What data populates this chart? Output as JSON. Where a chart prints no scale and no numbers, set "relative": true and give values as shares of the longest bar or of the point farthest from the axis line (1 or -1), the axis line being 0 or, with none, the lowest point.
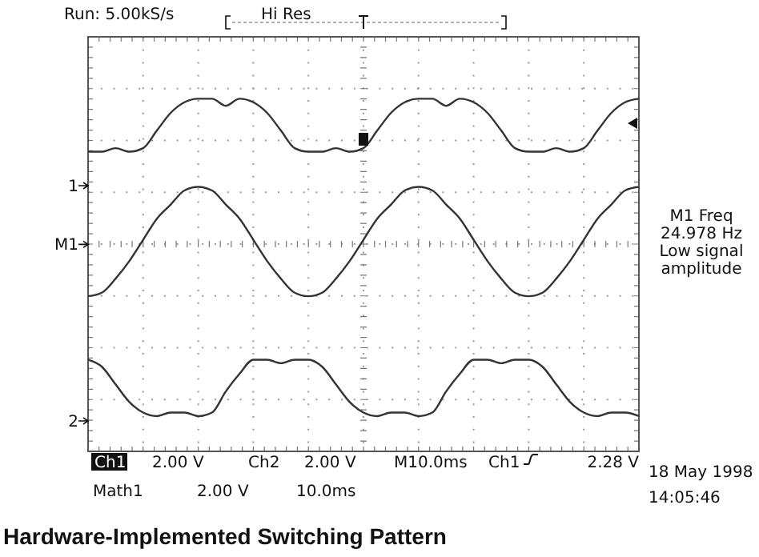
{
  "chart_data": {
    "type": "line",
    "title": "Hardware-Implemented Switching Pattern",
    "relative": true,
    "grid": true,
    "categories": [
      null,
      null,
      null,
      null,
      null,
      null,
      null,
      null,
      null,
      null,
      null,
      null,
      null,
      null,
      null,
      null,
      null,
      null,
      null,
      null,
      null,
      null,
      null,
      null,
      null,
      null,
      null,
      null,
      null,
      null,
      null,
      null,
      null,
      null,
      null,
      null,
      null,
      null,
      null,
      null,
      null
    ],
    "series": [
      {
        "name": "1",
        "color": "#333333",
        "values": [
          0.85,
          0.85,
          0.86,
          0.85,
          0.86,
          0.91,
          0.96,
          0.99,
          1.0,
          1.0,
          0.98,
          1.0,
          0.99,
          0.96,
          0.91,
          0.86,
          0.85,
          0.85,
          0.86,
          0.85,
          0.86,
          0.91,
          0.96,
          0.99,
          1.0,
          1.0,
          0.98,
          1.0,
          0.99,
          0.96,
          0.91,
          0.86,
          0.85,
          0.85,
          0.86,
          0.85,
          0.86,
          0.91,
          0.96,
          0.99,
          1.0
        ]
      },
      {
        "name": "M1",
        "color": "#333333",
        "values": [
          0.44,
          0.45,
          0.49,
          0.54,
          0.6,
          0.66,
          0.7,
          0.74,
          0.75,
          0.74,
          0.7,
          0.66,
          0.6,
          0.54,
          0.49,
          0.45,
          0.44,
          0.45,
          0.49,
          0.54,
          0.6,
          0.66,
          0.7,
          0.74,
          0.75,
          0.74,
          0.7,
          0.66,
          0.6,
          0.54,
          0.49,
          0.45,
          0.44,
          0.45,
          0.49,
          0.54,
          0.6,
          0.66,
          0.7,
          0.74,
          0.75
        ]
      },
      {
        "name": "2",
        "color": "#333333",
        "values": [
          0.26,
          0.24,
          0.19,
          0.14,
          0.11,
          0.1,
          0.11,
          0.11,
          0.1,
          0.11,
          0.17,
          0.22,
          0.26,
          0.26,
          0.25,
          0.26,
          0.26,
          0.24,
          0.19,
          0.14,
          0.11,
          0.1,
          0.11,
          0.11,
          0.1,
          0.11,
          0.17,
          0.22,
          0.26,
          0.26,
          0.25,
          0.26,
          0.26,
          0.24,
          0.19,
          0.14,
          0.11,
          0.1,
          0.11,
          0.11,
          0.1
        ]
      }
    ],
    "annotations": [
      "Run: 5.00kS/s",
      "Hi Res",
      "M1 Freq\n24.978 Hz\nLow signal\namplitude",
      "Ch1",
      "2.00 V",
      "Ch2",
      "2.00 V",
      "M10.0ms",
      "Ch1",
      "2.28 V",
      "Math1",
      "2.00 V",
      "10.0ms",
      "18 May 1998",
      "14:05:46"
    ]
  }
}
